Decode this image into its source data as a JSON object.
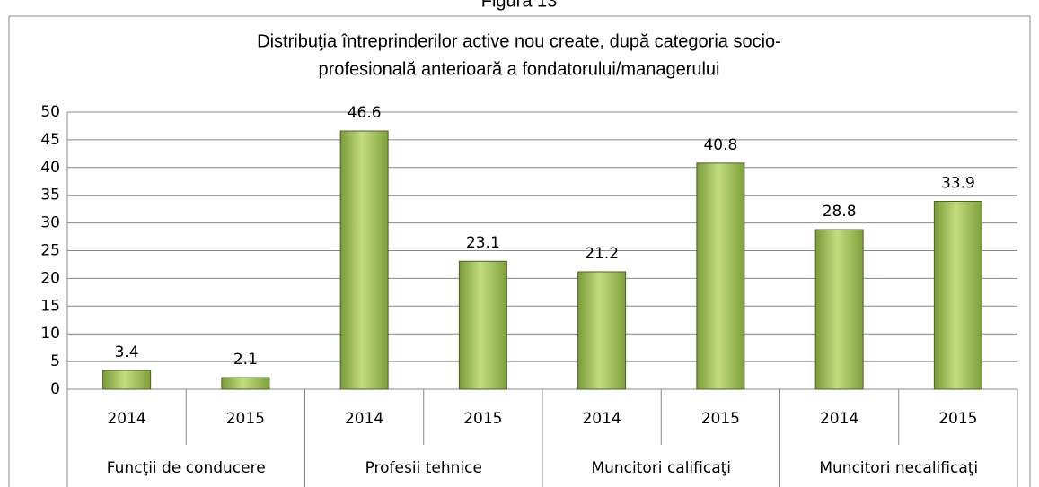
{
  "figure_label": "Figura 13",
  "chart_data": {
    "type": "bar",
    "title": [
      "Distribuţia întreprinderilor active nou create, după categoria socio-",
      "profesională anterioară a fondatorului/managerului"
    ],
    "categories": [
      "2014",
      "2015",
      "2014",
      "2015",
      "2014",
      "2015",
      "2014",
      "2015"
    ],
    "groups": [
      "Funcţii de conducere",
      "Profesii tehnice",
      "Muncitori calificaţi",
      "Muncitori necalificaţi"
    ],
    "values": [
      3.4,
      2.1,
      46.6,
      23.1,
      21.2,
      40.8,
      28.8,
      33.9
    ],
    "color": "#9bbb59",
    "ylim": [
      0,
      50
    ],
    "yticks": [
      0,
      5,
      10,
      15,
      20,
      25,
      30,
      35,
      40,
      45,
      50
    ],
    "grid": true
  }
}
